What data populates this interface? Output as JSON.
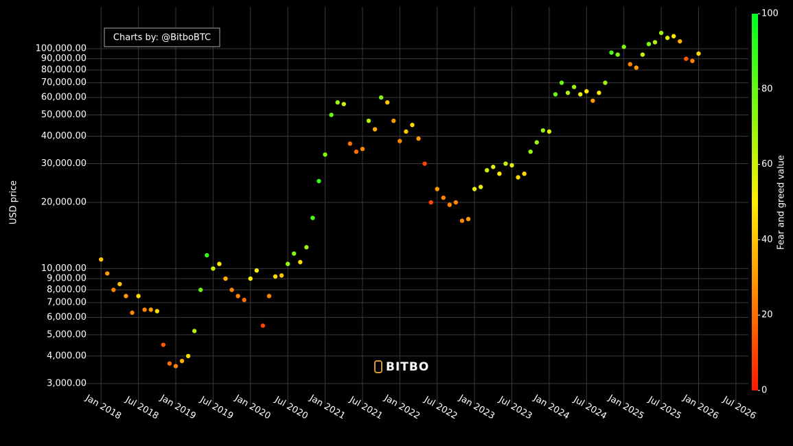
{
  "chart_data": {
    "type": "scatter",
    "y_label": "USD price",
    "annotation": "Charts by: @BitboBTC",
    "watermark": "BITBO",
    "log_y": true,
    "grid": true,
    "xlim": [
      "2017-10",
      "2026-09"
    ],
    "ylim": [
      2400,
      155000
    ],
    "xticks": [
      {
        "value": "2018-01",
        "label": "Jan 2018"
      },
      {
        "value": "2018-07",
        "label": "Jul 2018"
      },
      {
        "value": "2019-01",
        "label": "Jan 2019"
      },
      {
        "value": "2019-07",
        "label": "Jul 2019"
      },
      {
        "value": "2020-01",
        "label": "Jan 2020"
      },
      {
        "value": "2020-07",
        "label": "Jul 2020"
      },
      {
        "value": "2021-01",
        "label": "Jan 2021"
      },
      {
        "value": "2021-07",
        "label": "Jul 2021"
      },
      {
        "value": "2022-01",
        "label": "Jan 2022"
      },
      {
        "value": "2022-07",
        "label": "Jul 2022"
      },
      {
        "value": "2023-01",
        "label": "Jan 2023"
      },
      {
        "value": "2023-07",
        "label": "Jul 2023"
      },
      {
        "value": "2024-01",
        "label": "Jan 2024"
      },
      {
        "value": "2024-07",
        "label": "Jul 2024"
      },
      {
        "value": "2025-01",
        "label": "Jan 2025"
      },
      {
        "value": "2025-07",
        "label": "Jul 2025"
      },
      {
        "value": "2026-01",
        "label": "Jan 2026"
      },
      {
        "value": "2026-07",
        "label": "Jul 2026"
      }
    ],
    "yticks": [
      {
        "value": 3000,
        "label": "3,000.00"
      },
      {
        "value": 4000,
        "label": "4,000.00"
      },
      {
        "value": 5000,
        "label": "5,000.00"
      },
      {
        "value": 6000,
        "label": "6,000.00"
      },
      {
        "value": 7000,
        "label": "7,000.00"
      },
      {
        "value": 8000,
        "label": "8,000.00"
      },
      {
        "value": 9000,
        "label": "9,000.00"
      },
      {
        "value": 10000,
        "label": "10,000.00"
      },
      {
        "value": 20000,
        "label": "20,000.00"
      },
      {
        "value": 30000,
        "label": "30,000.00"
      },
      {
        "value": 40000,
        "label": "40,000.00"
      },
      {
        "value": 50000,
        "label": "50,000.00"
      },
      {
        "value": 60000,
        "label": "60,000.00"
      },
      {
        "value": 70000,
        "label": "70,000.00"
      },
      {
        "value": 80000,
        "label": "80,000.00"
      },
      {
        "value": 90000,
        "label": "90,000.00"
      },
      {
        "value": 100000,
        "label": "100,000.00"
      }
    ],
    "colorscale": [
      "#ff1a00",
      "#ffee00",
      "#00ff22"
    ],
    "colorbar": {
      "title": "Fear and greed value",
      "lim": [
        0,
        100
      ],
      "ticks": [
        0,
        20,
        40,
        60,
        80,
        100
      ]
    },
    "x": [
      "2018-01",
      "2018-02",
      "2018-03",
      "2018-04",
      "2018-05",
      "2018-06",
      "2018-07",
      "2018-08",
      "2018-09",
      "2018-10",
      "2018-11",
      "2018-12",
      "2019-01",
      "2019-02",
      "2019-03",
      "2019-04",
      "2019-05",
      "2019-06",
      "2019-07",
      "2019-08",
      "2019-09",
      "2019-10",
      "2019-11",
      "2019-12",
      "2020-01",
      "2020-02",
      "2020-03",
      "2020-04",
      "2020-05",
      "2020-06",
      "2020-07",
      "2020-08",
      "2020-09",
      "2020-10",
      "2020-11",
      "2020-12",
      "2021-01",
      "2021-02",
      "2021-03",
      "2021-04",
      "2021-05",
      "2021-06",
      "2021-07",
      "2021-08",
      "2021-09",
      "2021-10",
      "2021-11",
      "2021-12",
      "2022-01",
      "2022-02",
      "2022-03",
      "2022-04",
      "2022-05",
      "2022-06",
      "2022-07",
      "2022-08",
      "2022-09",
      "2022-10",
      "2022-11",
      "2022-12",
      "2023-01",
      "2023-02",
      "2023-03",
      "2023-04",
      "2023-05",
      "2023-06",
      "2023-07",
      "2023-08",
      "2023-09",
      "2023-10",
      "2023-11",
      "2023-12",
      "2024-01",
      "2024-02",
      "2024-03",
      "2024-04",
      "2024-05",
      "2024-06",
      "2024-07",
      "2024-08",
      "2024-09",
      "2024-10",
      "2024-11",
      "2024-12",
      "2025-01",
      "2025-02",
      "2025-03",
      "2025-04",
      "2025-05",
      "2025-06",
      "2025-07",
      "2025-08",
      "2025-09",
      "2025-10",
      "2025-11",
      "2025-12",
      "2026-01"
    ],
    "values": [
      11000,
      9500,
      8000,
      8500,
      7500,
      6300,
      7500,
      6500,
      6500,
      6400,
      4500,
      3700,
      3600,
      3800,
      4000,
      5200,
      8000,
      11500,
      10000,
      10500,
      9000,
      8000,
      7500,
      7200,
      9000,
      9800,
      5500,
      7500,
      9200,
      9300,
      10500,
      11700,
      10700,
      12500,
      17000,
      25000,
      33000,
      50000,
      57000,
      56000,
      37000,
      34000,
      35000,
      47000,
      43000,
      60000,
      57000,
      47000,
      38000,
      42000,
      45000,
      39000,
      30000,
      20000,
      23000,
      21000,
      19500,
      20000,
      16500,
      16800,
      23000,
      23500,
      28000,
      29000,
      27000,
      30000,
      29500,
      26000,
      27000,
      34000,
      37500,
      42500,
      42000,
      62000,
      70000,
      63000,
      67000,
      62000,
      64000,
      58000,
      63000,
      70000,
      96000,
      94000,
      102000,
      85000,
      82000,
      94000,
      105000,
      107000,
      118000,
      112000,
      114000,
      108000,
      90000,
      88000,
      95000
    ],
    "color_values": [
      40,
      30,
      25,
      40,
      30,
      25,
      45,
      25,
      30,
      45,
      15,
      20,
      25,
      35,
      45,
      65,
      80,
      90,
      60,
      50,
      35,
      25,
      25,
      20,
      50,
      50,
      10,
      25,
      45,
      40,
      70,
      75,
      45,
      70,
      85,
      90,
      75,
      80,
      70,
      60,
      20,
      20,
      25,
      65,
      35,
      75,
      40,
      30,
      25,
      40,
      45,
      30,
      10,
      10,
      30,
      25,
      25,
      25,
      25,
      30,
      55,
      55,
      60,
      55,
      50,
      60,
      55,
      45,
      45,
      70,
      70,
      70,
      55,
      80,
      80,
      65,
      70,
      55,
      50,
      30,
      50,
      70,
      85,
      75,
      75,
      25,
      30,
      60,
      75,
      65,
      70,
      55,
      50,
      35,
      15,
      25,
      45
    ]
  }
}
